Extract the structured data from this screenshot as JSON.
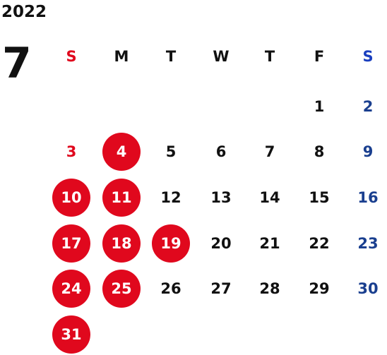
{
  "calendar": {
    "year": "2022",
    "month": "7",
    "weekdays": [
      "S",
      "M",
      "T",
      "W",
      "T",
      "F",
      "S"
    ],
    "weekday_colors": [
      "#e0081d",
      "#111111",
      "#111111",
      "#111111",
      "#111111",
      "#111111",
      "#1a3fbf"
    ],
    "colors": {
      "highlight_fill": "#e0081d",
      "sunday_text": "#e0081d",
      "saturday_text": "#1a3f8f",
      "weekday_text": "#111111",
      "highlight_text": "#ffffff"
    },
    "first_weekday_index": 5,
    "days": [
      {
        "num": "1",
        "highlight": false
      },
      {
        "num": "2",
        "highlight": false
      },
      {
        "num": "3",
        "highlight": false
      },
      {
        "num": "4",
        "highlight": true
      },
      {
        "num": "5",
        "highlight": false
      },
      {
        "num": "6",
        "highlight": false
      },
      {
        "num": "7",
        "highlight": false
      },
      {
        "num": "8",
        "highlight": false
      },
      {
        "num": "9",
        "highlight": false
      },
      {
        "num": "10",
        "highlight": true
      },
      {
        "num": "11",
        "highlight": true
      },
      {
        "num": "12",
        "highlight": false
      },
      {
        "num": "13",
        "highlight": false
      },
      {
        "num": "14",
        "highlight": false
      },
      {
        "num": "15",
        "highlight": false
      },
      {
        "num": "16",
        "highlight": false
      },
      {
        "num": "17",
        "highlight": true
      },
      {
        "num": "18",
        "highlight": true
      },
      {
        "num": "19",
        "highlight": true
      },
      {
        "num": "20",
        "highlight": false
      },
      {
        "num": "21",
        "highlight": false
      },
      {
        "num": "22",
        "highlight": false
      },
      {
        "num": "23",
        "highlight": false
      },
      {
        "num": "24",
        "highlight": true
      },
      {
        "num": "25",
        "highlight": true
      },
      {
        "num": "26",
        "highlight": false
      },
      {
        "num": "27",
        "highlight": false
      },
      {
        "num": "28",
        "highlight": false
      },
      {
        "num": "29",
        "highlight": false
      },
      {
        "num": "30",
        "highlight": false
      },
      {
        "num": "31",
        "highlight": true
      }
    ]
  }
}
